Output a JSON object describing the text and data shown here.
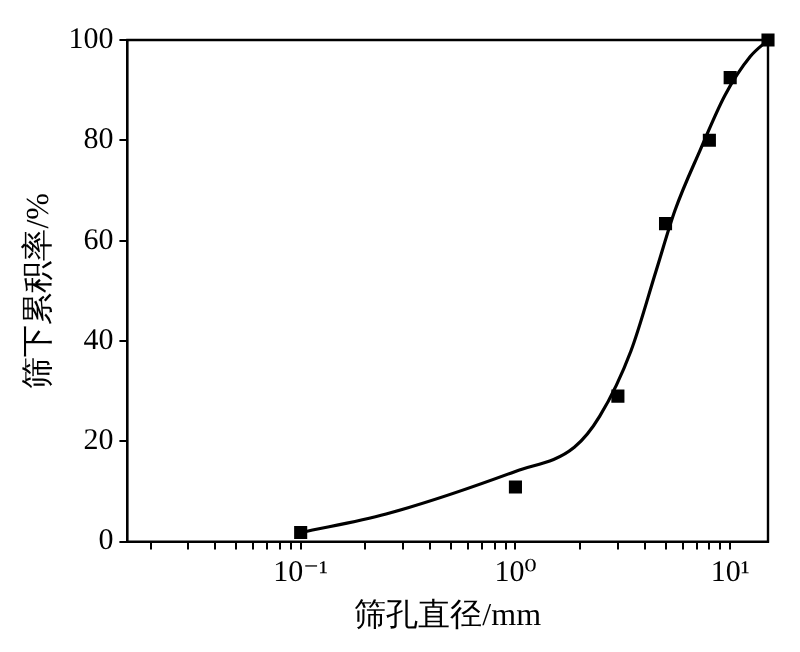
{
  "chart_data": {
    "type": "scatter",
    "xlabel": "筛孔直径/mm",
    "ylabel": "筛下累积率/%",
    "log": "x",
    "grid": false,
    "legend": false,
    "xlim": [
      0.0156,
      15
    ],
    "ylim": [
      0,
      100
    ],
    "xticks": [
      {
        "value": 0.02,
        "label": null
      },
      {
        "value": 0.03,
        "label": null
      },
      {
        "value": 0.04,
        "label": null
      },
      {
        "value": 0.05,
        "label": null
      },
      {
        "value": 0.06,
        "label": null
      },
      {
        "value": 0.07,
        "label": null
      },
      {
        "value": 0.08,
        "label": null
      },
      {
        "value": 0.09,
        "label": null
      },
      {
        "value": 0.1,
        "label": "10⁻¹"
      },
      {
        "value": 0.2,
        "label": null
      },
      {
        "value": 0.3,
        "label": null
      },
      {
        "value": 0.4,
        "label": null
      },
      {
        "value": 0.5,
        "label": null
      },
      {
        "value": 0.6,
        "label": null
      },
      {
        "value": 0.7,
        "label": null
      },
      {
        "value": 0.8,
        "label": null
      },
      {
        "value": 0.9,
        "label": null
      },
      {
        "value": 1,
        "label": "10⁰"
      },
      {
        "value": 2,
        "label": null
      },
      {
        "value": 3,
        "label": null
      },
      {
        "value": 4,
        "label": null
      },
      {
        "value": 5,
        "label": null
      },
      {
        "value": 6,
        "label": null
      },
      {
        "value": 7,
        "label": null
      },
      {
        "value": 8,
        "label": null
      },
      {
        "value": 9,
        "label": null
      },
      {
        "value": 10,
        "label": "10¹"
      }
    ],
    "yticks": [
      0,
      20,
      40,
      60,
      80,
      100
    ],
    "series": [
      {
        "type": "scatter",
        "marker": "square",
        "color": "#000000",
        "x": [
          0.1,
          1,
          3,
          5,
          8,
          10,
          15
        ],
        "values": [
          1.8,
          10.9,
          29,
          63.4,
          80,
          92.5,
          100
        ]
      },
      {
        "type": "line",
        "marker": "none",
        "line_style": "solid",
        "color": "#000000",
        "x": [
          0.1,
          0.25,
          1,
          1.88,
          2.47,
          3.45,
          4.52,
          5.53,
          7.24,
          9.46,
          12.4,
          15
        ],
        "values": [
          1.8,
          5.5,
          14,
          18.8,
          25,
          38,
          54,
          66,
          78,
          89,
          96.7,
          100
        ]
      }
    ]
  }
}
